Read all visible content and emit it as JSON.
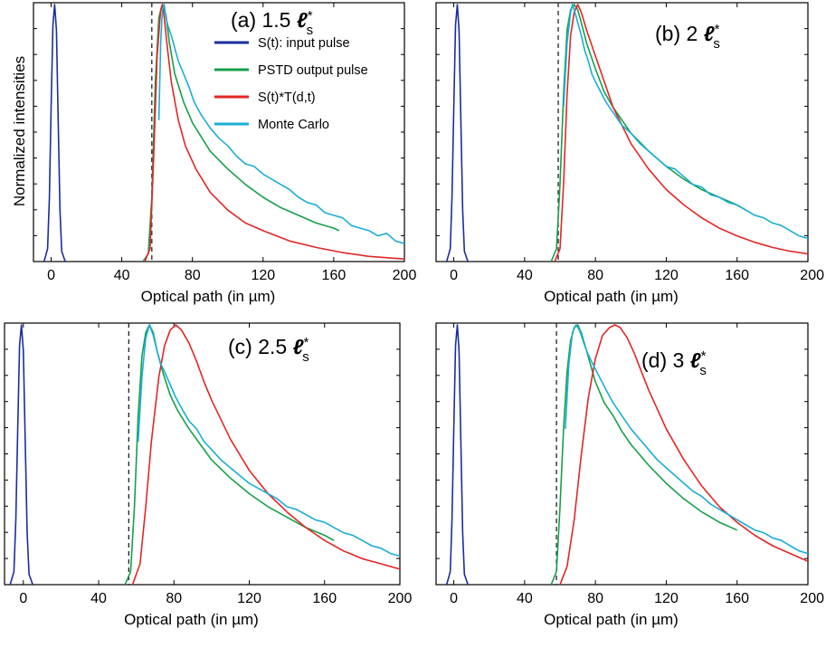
{
  "figure": {
    "ylabel": "Normalized intensities"
  },
  "colors": {
    "input": "#1a2d9e",
    "pstd": "#16a04a",
    "conv": "#e32626",
    "mc": "#1aaed6",
    "dashed": "#222222"
  },
  "legend": [
    {
      "label": "S(t): input pulse",
      "color_key": "input"
    },
    {
      "label": "PSTD output pulse",
      "color_key": "pstd"
    },
    {
      "label": "S(t)*T(d,t)",
      "color_key": "conv"
    },
    {
      "label": "Monte Carlo",
      "color_key": "mc"
    }
  ],
  "chart_data": [
    {
      "type": "line",
      "panel": "a",
      "title_prefix": "(a) 1.5",
      "title_symbol": "ℓ",
      "title_sup": "*",
      "title_sub": "s",
      "xlabel": "Optical path (in µm)",
      "ylabel": "Normalized intensities",
      "xlim": [
        -10,
        200
      ],
      "ylim": [
        0,
        1
      ],
      "xticks": [
        0,
        40,
        80,
        120,
        160,
        200
      ],
      "xtick_labels": [
        "0",
        "40",
        "80",
        "120",
        "160",
        "200"
      ],
      "grid": false,
      "legend": "top-right",
      "dashed_line_x": 57,
      "series": [
        {
          "name": "S(t): input pulse",
          "x": [
            -4,
            -2,
            -1,
            0,
            1,
            2,
            3,
            4,
            5,
            6,
            8
          ],
          "y": [
            0,
            0.05,
            0.25,
            0.6,
            0.92,
            1.0,
            0.9,
            0.55,
            0.2,
            0.04,
            0
          ]
        },
        {
          "name": "PSTD output pulse",
          "x": [
            52,
            55,
            57,
            59,
            61,
            63,
            65,
            67,
            70,
            75,
            80,
            90,
            100,
            110,
            120,
            130,
            140,
            150,
            160,
            163
          ],
          "y": [
            0,
            0.03,
            0.25,
            0.7,
            0.95,
            1.0,
            0.96,
            0.85,
            0.73,
            0.62,
            0.54,
            0.43,
            0.36,
            0.3,
            0.25,
            0.21,
            0.18,
            0.15,
            0.13,
            0.12
          ]
        },
        {
          "name": "S(t)*T(d,t)",
          "x": [
            53,
            56,
            58,
            60,
            62,
            63,
            64,
            66,
            68,
            72,
            76,
            82,
            90,
            100,
            110,
            120,
            135,
            150,
            165,
            180,
            200
          ],
          "y": [
            0,
            0.05,
            0.4,
            0.8,
            0.98,
            1.0,
            0.95,
            0.82,
            0.7,
            0.55,
            0.45,
            0.36,
            0.27,
            0.2,
            0.15,
            0.12,
            0.08,
            0.055,
            0.035,
            0.02,
            0.01
          ]
        },
        {
          "name": "Monte Carlo",
          "x": [
            61,
            62,
            63,
            64,
            65,
            66,
            68,
            70,
            72,
            75,
            78,
            81,
            85,
            90,
            95,
            100,
            105,
            110,
            115,
            120,
            125,
            130,
            135,
            140,
            145,
            150,
            155,
            160,
            165,
            170,
            175,
            180,
            185,
            190,
            195,
            200
          ],
          "y": [
            0.55,
            0.85,
            0.98,
            1.0,
            0.95,
            0.92,
            0.88,
            0.83,
            0.78,
            0.73,
            0.68,
            0.62,
            0.57,
            0.52,
            0.48,
            0.45,
            0.41,
            0.38,
            0.37,
            0.34,
            0.32,
            0.3,
            0.28,
            0.25,
            0.23,
            0.22,
            0.19,
            0.18,
            0.17,
            0.14,
            0.13,
            0.12,
            0.1,
            0.11,
            0.08,
            0.07
          ]
        }
      ]
    },
    {
      "type": "line",
      "panel": "b",
      "title_prefix": "(b) 2",
      "title_symbol": "ℓ",
      "title_sup": "*",
      "title_sub": "s",
      "xlabel": "Optical path (in µm)",
      "xlim": [
        -10,
        200
      ],
      "ylim": [
        0,
        1
      ],
      "xticks": [
        0,
        40,
        80,
        120,
        160,
        200
      ],
      "xtick_labels": [
        "0",
        "40",
        "80",
        "120",
        "160",
        "200"
      ],
      "grid": false,
      "dashed_line_x": 59,
      "series": [
        {
          "name": "S(t): input pulse",
          "x": [
            -4,
            -2,
            -1,
            0,
            1,
            2,
            3,
            4,
            5,
            6,
            8
          ],
          "y": [
            0,
            0.05,
            0.25,
            0.6,
            0.92,
            1.0,
            0.9,
            0.55,
            0.2,
            0.04,
            0
          ]
        },
        {
          "name": "PSTD output pulse",
          "x": [
            55,
            58,
            60,
            62,
            64,
            66,
            68,
            70,
            72,
            75,
            80,
            85,
            90,
            100,
            110,
            120,
            130,
            140,
            150,
            160,
            165
          ],
          "y": [
            0,
            0.05,
            0.3,
            0.65,
            0.9,
            0.98,
            1.0,
            0.98,
            0.93,
            0.85,
            0.75,
            0.66,
            0.6,
            0.5,
            0.43,
            0.37,
            0.32,
            0.28,
            0.25,
            0.22,
            0.2
          ]
        },
        {
          "name": "S(t)*T(d,t)",
          "x": [
            57,
            60,
            62,
            64,
            66,
            68,
            70,
            72,
            75,
            80,
            85,
            90,
            100,
            110,
            120,
            130,
            140,
            150,
            160,
            170,
            180,
            190,
            200
          ],
          "y": [
            0,
            0.05,
            0.3,
            0.65,
            0.88,
            0.97,
            1.0,
            0.97,
            0.9,
            0.8,
            0.7,
            0.6,
            0.46,
            0.36,
            0.28,
            0.22,
            0.17,
            0.13,
            0.1,
            0.075,
            0.055,
            0.04,
            0.03
          ]
        },
        {
          "name": "Monte Carlo",
          "x": [
            62,
            64,
            66,
            67,
            68,
            70,
            72,
            74,
            76,
            78,
            80,
            83,
            86,
            90,
            95,
            100,
            105,
            110,
            115,
            120,
            125,
            130,
            135,
            140,
            145,
            150,
            155,
            160,
            165,
            170,
            175,
            180,
            185,
            190,
            195,
            200
          ],
          "y": [
            0.6,
            0.85,
            0.97,
            1.0,
            0.98,
            0.93,
            0.88,
            0.82,
            0.78,
            0.73,
            0.7,
            0.66,
            0.62,
            0.58,
            0.53,
            0.5,
            0.46,
            0.43,
            0.4,
            0.37,
            0.36,
            0.33,
            0.3,
            0.29,
            0.26,
            0.25,
            0.23,
            0.22,
            0.2,
            0.18,
            0.17,
            0.15,
            0.14,
            0.12,
            0.1,
            0.09
          ]
        }
      ]
    },
    {
      "type": "line",
      "panel": "c",
      "title_prefix": "(c) 2.5",
      "title_symbol": "ℓ",
      "title_sup": "*",
      "title_sub": "s",
      "xlabel": "Optical path (in µm)",
      "xlim": [
        -10,
        200
      ],
      "ylim": [
        0,
        1
      ],
      "xticks": [
        0,
        40,
        80,
        120,
        160,
        200
      ],
      "xtick_labels": [
        "0",
        "40",
        "80",
        "120",
        "160",
        "200"
      ],
      "grid": false,
      "dashed_line_x": 56,
      "series": [
        {
          "name": "S(t): input pulse",
          "x": [
            -7,
            -5,
            -4,
            -3,
            -2,
            -1,
            0,
            1,
            2,
            3,
            5
          ],
          "y": [
            0,
            0.05,
            0.25,
            0.6,
            0.92,
            1.0,
            0.9,
            0.55,
            0.2,
            0.04,
            0
          ]
        },
        {
          "name": "PSTD output pulse",
          "x": [
            54,
            57,
            59,
            61,
            63,
            65,
            67,
            69,
            71,
            74,
            78,
            82,
            88,
            95,
            100,
            110,
            120,
            130,
            140,
            150,
            160,
            165
          ],
          "y": [
            0,
            0.05,
            0.3,
            0.65,
            0.88,
            0.97,
            1.0,
            0.97,
            0.9,
            0.82,
            0.73,
            0.67,
            0.6,
            0.53,
            0.48,
            0.41,
            0.35,
            0.3,
            0.26,
            0.22,
            0.19,
            0.17
          ]
        },
        {
          "name": "S(t)*T(d,t)",
          "x": [
            58,
            62,
            65,
            68,
            72,
            75,
            78,
            81,
            84,
            88,
            92,
            96,
            100,
            110,
            120,
            130,
            140,
            150,
            160,
            170,
            180,
            190,
            200
          ],
          "y": [
            0,
            0.08,
            0.3,
            0.55,
            0.8,
            0.92,
            0.98,
            1.0,
            0.98,
            0.93,
            0.86,
            0.78,
            0.71,
            0.56,
            0.44,
            0.35,
            0.28,
            0.22,
            0.17,
            0.13,
            0.1,
            0.08,
            0.06
          ]
        },
        {
          "name": "Monte Carlo",
          "x": [
            61,
            63,
            65,
            67,
            69,
            71,
            73,
            75,
            78,
            81,
            84,
            88,
            92,
            96,
            100,
            105,
            110,
            115,
            120,
            125,
            130,
            135,
            140,
            145,
            150,
            155,
            160,
            165,
            170,
            175,
            180,
            185,
            190,
            195,
            200
          ],
          "y": [
            0.55,
            0.8,
            0.95,
            1.0,
            0.96,
            0.9,
            0.85,
            0.82,
            0.77,
            0.72,
            0.68,
            0.63,
            0.6,
            0.55,
            0.52,
            0.48,
            0.45,
            0.42,
            0.39,
            0.37,
            0.35,
            0.33,
            0.3,
            0.29,
            0.27,
            0.25,
            0.24,
            0.22,
            0.2,
            0.19,
            0.17,
            0.15,
            0.14,
            0.12,
            0.11
          ]
        }
      ]
    },
    {
      "type": "line",
      "panel": "d",
      "title_prefix": "(d) 3",
      "title_symbol": "ℓ",
      "title_sup": "*",
      "title_sub": "s",
      "xlabel": "Optical path (in µm)",
      "xlim": [
        -10,
        200
      ],
      "ylim": [
        0,
        1
      ],
      "xticks": [
        0,
        40,
        80,
        120,
        160,
        200
      ],
      "xtick_labels": [
        "0",
        "40",
        "80",
        "120",
        "160",
        "200"
      ],
      "grid": false,
      "dashed_line_x": 58,
      "series": [
        {
          "name": "S(t): input pulse",
          "x": [
            -4,
            -2,
            -1,
            0,
            1,
            2,
            3,
            4,
            5,
            6,
            8
          ],
          "y": [
            0,
            0.05,
            0.25,
            0.6,
            0.92,
            1.0,
            0.9,
            0.55,
            0.2,
            0.04,
            0
          ]
        },
        {
          "name": "PSTD output pulse",
          "x": [
            55,
            58,
            60,
            62,
            64,
            66,
            68,
            70,
            72,
            75,
            80,
            85,
            90,
            95,
            100,
            110,
            120,
            130,
            140,
            150,
            160
          ],
          "y": [
            0,
            0.05,
            0.3,
            0.6,
            0.82,
            0.94,
            0.99,
            1.0,
            0.97,
            0.9,
            0.78,
            0.7,
            0.65,
            0.59,
            0.54,
            0.46,
            0.39,
            0.33,
            0.28,
            0.24,
            0.21
          ]
        },
        {
          "name": "S(t)*T(d,t)",
          "x": [
            60,
            64,
            68,
            72,
            76,
            80,
            84,
            88,
            91,
            94,
            98,
            102,
            106,
            110,
            120,
            130,
            140,
            150,
            160,
            170,
            180,
            190,
            200
          ],
          "y": [
            0,
            0.07,
            0.25,
            0.5,
            0.72,
            0.87,
            0.96,
            0.99,
            1.0,
            0.99,
            0.95,
            0.89,
            0.82,
            0.75,
            0.6,
            0.48,
            0.38,
            0.3,
            0.24,
            0.19,
            0.15,
            0.12,
            0.09
          ]
        },
        {
          "name": "Monte Carlo",
          "x": [
            63,
            65,
            67,
            69,
            71,
            73,
            75,
            77,
            80,
            83,
            86,
            90,
            95,
            100,
            105,
            110,
            115,
            120,
            125,
            130,
            135,
            140,
            145,
            150,
            155,
            160,
            165,
            170,
            175,
            180,
            185,
            190,
            195,
            200
          ],
          "y": [
            0.6,
            0.85,
            0.97,
            1.0,
            0.98,
            0.94,
            0.9,
            0.87,
            0.83,
            0.79,
            0.75,
            0.7,
            0.65,
            0.6,
            0.56,
            0.52,
            0.48,
            0.45,
            0.42,
            0.39,
            0.36,
            0.34,
            0.31,
            0.29,
            0.27,
            0.25,
            0.23,
            0.21,
            0.2,
            0.18,
            0.17,
            0.15,
            0.13,
            0.12
          ]
        }
      ]
    }
  ]
}
